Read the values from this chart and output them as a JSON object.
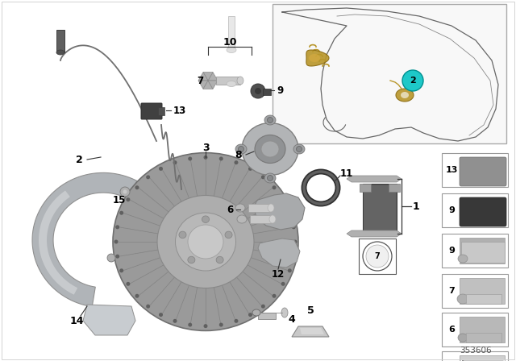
{
  "background_color": "#ffffff",
  "part_number": "353606",
  "colors": {
    "cyan_circle": "#1ec8c8",
    "gold": "#b8962a",
    "disc_face": "#a0a0a0",
    "disc_edge": "#787878",
    "disc_rib": "#888888",
    "disc_hub": "#b8b8b8",
    "disc_hole": "#c8c8c8",
    "shield_light": "#c8ccd0",
    "shield_mid": "#b0b4b8",
    "shield_dark": "#909498",
    "caliper_body": "#b0b2b4",
    "caliper_dark": "#909294",
    "pad_face": "#6a6a6a",
    "pad_back": "#989898",
    "clip_color": "#a8a8a8",
    "wire_color": "#707070",
    "connector_color": "#404040",
    "bolt_light": "#d8d8d8",
    "bolt_dark": "#909090",
    "oring_stroke": "#404040",
    "line_color": "#222222",
    "box_border": "#888888",
    "label_bg": "#ffffff"
  }
}
